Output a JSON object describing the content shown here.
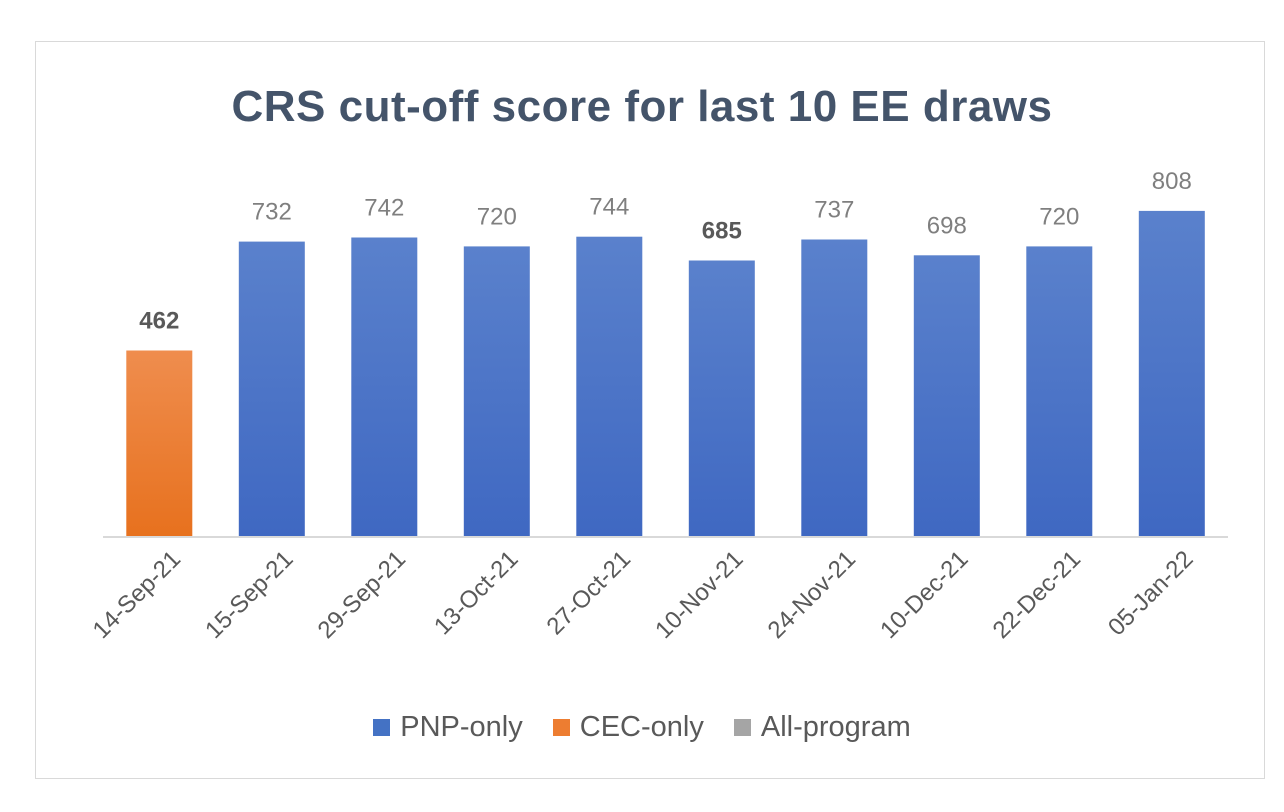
{
  "chart_data": {
    "type": "bar",
    "title": "CRS cut-off score for last 10 EE draws",
    "xlabel": "",
    "ylabel": "",
    "ylim": [
      0,
      830
    ],
    "grid": false,
    "legend_position": "bottom",
    "categories": [
      "14-Sep-21",
      "15-Sep-21",
      "29-Sep-21",
      "13-Oct-21",
      "27-Oct-21",
      "10-Nov-21",
      "24-Nov-21",
      "10-Dec-21",
      "22-Dec-21",
      "05-Jan-22"
    ],
    "values": [
      462,
      732,
      742,
      720,
      744,
      685,
      737,
      698,
      720,
      808
    ],
    "bar_programs": [
      "CEC-only",
      "PNP-only",
      "PNP-only",
      "PNP-only",
      "PNP-only",
      "PNP-only",
      "PNP-only",
      "PNP-only",
      "PNP-only",
      "PNP-only"
    ],
    "legend": [
      {
        "name": "PNP-only",
        "color": "#4472c4"
      },
      {
        "name": "CEC-only",
        "color": "#ed7d31"
      },
      {
        "name": "All-program",
        "color": "#a5a5a5"
      }
    ]
  }
}
